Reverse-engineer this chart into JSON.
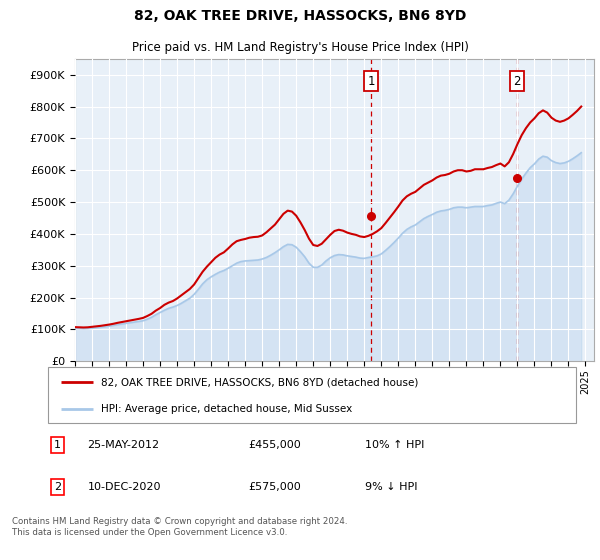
{
  "title": "82, OAK TREE DRIVE, HASSOCKS, BN6 8YD",
  "subtitle": "Price paid vs. HM Land Registry's House Price Index (HPI)",
  "ytick_values": [
    0,
    100000,
    200000,
    300000,
    400000,
    500000,
    600000,
    700000,
    800000,
    900000
  ],
  "ylim": [
    0,
    950000
  ],
  "x_start_year": 1995,
  "x_end_year": 2025,
  "transaction1": {
    "date_num": 2012.4,
    "price": 455000,
    "label": "1"
  },
  "transaction2": {
    "date_num": 2020.95,
    "price": 575000,
    "label": "2"
  },
  "hpi_color": "#a8c8e8",
  "price_color": "#cc0000",
  "vline_color": "#cc0000",
  "background_color": "#e8f0f8",
  "legend_label_price": "82, OAK TREE DRIVE, HASSOCKS, BN6 8YD (detached house)",
  "legend_label_hpi": "HPI: Average price, detached house, Mid Sussex",
  "footer": "Contains HM Land Registry data © Crown copyright and database right 2024.\nThis data is licensed under the Open Government Licence v3.0.",
  "hpi_data": [
    [
      1995.0,
      103000
    ],
    [
      1995.25,
      102500
    ],
    [
      1995.5,
      102000
    ],
    [
      1995.75,
      102500
    ],
    [
      1996.0,
      103500
    ],
    [
      1996.25,
      105000
    ],
    [
      1996.5,
      106500
    ],
    [
      1996.75,
      108000
    ],
    [
      1997.0,
      110000
    ],
    [
      1997.25,
      112500
    ],
    [
      1997.5,
      115000
    ],
    [
      1997.75,
      117000
    ],
    [
      1998.0,
      119000
    ],
    [
      1998.25,
      121000
    ],
    [
      1998.5,
      123000
    ],
    [
      1998.75,
      125000
    ],
    [
      1999.0,
      127000
    ],
    [
      1999.25,
      132000
    ],
    [
      1999.5,
      138000
    ],
    [
      1999.75,
      146000
    ],
    [
      2000.0,
      153000
    ],
    [
      2000.25,
      160000
    ],
    [
      2000.5,
      166000
    ],
    [
      2000.75,
      170000
    ],
    [
      2001.0,
      175000
    ],
    [
      2001.25,
      182000
    ],
    [
      2001.5,
      190000
    ],
    [
      2001.75,
      198000
    ],
    [
      2002.0,
      210000
    ],
    [
      2002.25,
      226000
    ],
    [
      2002.5,
      243000
    ],
    [
      2002.75,
      256000
    ],
    [
      2003.0,
      265000
    ],
    [
      2003.25,
      273000
    ],
    [
      2003.5,
      280000
    ],
    [
      2003.75,
      285000
    ],
    [
      2004.0,
      292000
    ],
    [
      2004.25,
      300000
    ],
    [
      2004.5,
      308000
    ],
    [
      2004.75,
      313000
    ],
    [
      2005.0,
      315000
    ],
    [
      2005.25,
      316000
    ],
    [
      2005.5,
      317000
    ],
    [
      2005.75,
      318000
    ],
    [
      2006.0,
      321000
    ],
    [
      2006.25,
      326000
    ],
    [
      2006.5,
      333000
    ],
    [
      2006.75,
      341000
    ],
    [
      2007.0,
      350000
    ],
    [
      2007.25,
      360000
    ],
    [
      2007.5,
      367000
    ],
    [
      2007.75,
      366000
    ],
    [
      2008.0,
      358000
    ],
    [
      2008.25,
      344000
    ],
    [
      2008.5,
      328000
    ],
    [
      2008.75,
      308000
    ],
    [
      2009.0,
      295000
    ],
    [
      2009.25,
      295000
    ],
    [
      2009.5,
      302000
    ],
    [
      2009.75,
      315000
    ],
    [
      2010.0,
      325000
    ],
    [
      2010.25,
      332000
    ],
    [
      2010.5,
      335000
    ],
    [
      2010.75,
      334000
    ],
    [
      2011.0,
      331000
    ],
    [
      2011.25,
      329000
    ],
    [
      2011.5,
      327000
    ],
    [
      2011.75,
      324000
    ],
    [
      2012.0,
      323000
    ],
    [
      2012.25,
      326000
    ],
    [
      2012.5,
      328000
    ],
    [
      2012.75,
      331000
    ],
    [
      2013.0,
      337000
    ],
    [
      2013.25,
      348000
    ],
    [
      2013.5,
      360000
    ],
    [
      2013.75,
      373000
    ],
    [
      2014.0,
      387000
    ],
    [
      2014.25,
      402000
    ],
    [
      2014.5,
      414000
    ],
    [
      2014.75,
      422000
    ],
    [
      2015.0,
      428000
    ],
    [
      2015.25,
      438000
    ],
    [
      2015.5,
      448000
    ],
    [
      2015.75,
      455000
    ],
    [
      2016.0,
      461000
    ],
    [
      2016.25,
      468000
    ],
    [
      2016.5,
      472000
    ],
    [
      2016.75,
      474000
    ],
    [
      2017.0,
      477000
    ],
    [
      2017.25,
      482000
    ],
    [
      2017.5,
      484000
    ],
    [
      2017.75,
      484000
    ],
    [
      2018.0,
      482000
    ],
    [
      2018.25,
      484000
    ],
    [
      2018.5,
      486000
    ],
    [
      2018.75,
      486000
    ],
    [
      2019.0,
      486000
    ],
    [
      2019.25,
      489000
    ],
    [
      2019.5,
      491000
    ],
    [
      2019.75,
      496000
    ],
    [
      2020.0,
      500000
    ],
    [
      2020.25,
      495000
    ],
    [
      2020.5,
      506000
    ],
    [
      2020.75,
      526000
    ],
    [
      2021.0,
      550000
    ],
    [
      2021.25,
      572000
    ],
    [
      2021.5,
      591000
    ],
    [
      2021.75,
      608000
    ],
    [
      2022.0,
      620000
    ],
    [
      2022.25,
      635000
    ],
    [
      2022.5,
      644000
    ],
    [
      2022.75,
      641000
    ],
    [
      2023.0,
      630000
    ],
    [
      2023.25,
      624000
    ],
    [
      2023.5,
      621000
    ],
    [
      2023.75,
      623000
    ],
    [
      2024.0,
      628000
    ],
    [
      2024.25,
      636000
    ],
    [
      2024.5,
      645000
    ],
    [
      2024.75,
      655000
    ]
  ],
  "price_data": [
    [
      1995.0,
      107000
    ],
    [
      1995.25,
      106500
    ],
    [
      1995.5,
      106000
    ],
    [
      1995.75,
      106500
    ],
    [
      1996.0,
      108000
    ],
    [
      1996.25,
      109500
    ],
    [
      1996.5,
      111000
    ],
    [
      1996.75,
      113000
    ],
    [
      1997.0,
      115000
    ],
    [
      1997.25,
      117500
    ],
    [
      1997.5,
      120500
    ],
    [
      1997.75,
      123000
    ],
    [
      1998.0,
      125500
    ],
    [
      1998.25,
      128000
    ],
    [
      1998.5,
      130500
    ],
    [
      1998.75,
      133000
    ],
    [
      1999.0,
      136000
    ],
    [
      1999.25,
      142000
    ],
    [
      1999.5,
      149000
    ],
    [
      1999.75,
      159000
    ],
    [
      2000.0,
      167000
    ],
    [
      2000.25,
      177000
    ],
    [
      2000.5,
      184000
    ],
    [
      2000.75,
      189000
    ],
    [
      2001.0,
      197000
    ],
    [
      2001.25,
      207000
    ],
    [
      2001.5,
      217000
    ],
    [
      2001.75,
      227000
    ],
    [
      2002.0,
      241000
    ],
    [
      2002.25,
      261000
    ],
    [
      2002.5,
      281000
    ],
    [
      2002.75,
      297000
    ],
    [
      2003.0,
      311000
    ],
    [
      2003.25,
      325000
    ],
    [
      2003.5,
      335000
    ],
    [
      2003.75,
      342000
    ],
    [
      2004.0,
      354000
    ],
    [
      2004.25,
      367000
    ],
    [
      2004.5,
      377000
    ],
    [
      2004.75,
      381000
    ],
    [
      2005.0,
      384000
    ],
    [
      2005.25,
      388000
    ],
    [
      2005.5,
      390000
    ],
    [
      2005.75,
      391000
    ],
    [
      2006.0,
      395000
    ],
    [
      2006.25,
      405000
    ],
    [
      2006.5,
      417000
    ],
    [
      2006.75,
      429000
    ],
    [
      2007.0,
      446000
    ],
    [
      2007.25,
      463000
    ],
    [
      2007.5,
      473000
    ],
    [
      2007.75,
      470000
    ],
    [
      2008.0,
      457000
    ],
    [
      2008.25,
      436000
    ],
    [
      2008.5,
      412000
    ],
    [
      2008.75,
      385000
    ],
    [
      2009.0,
      365000
    ],
    [
      2009.25,
      362000
    ],
    [
      2009.5,
      369000
    ],
    [
      2009.75,
      383000
    ],
    [
      2010.0,
      397000
    ],
    [
      2010.25,
      409000
    ],
    [
      2010.5,
      413000
    ],
    [
      2010.75,
      410000
    ],
    [
      2011.0,
      404000
    ],
    [
      2011.25,
      400000
    ],
    [
      2011.5,
      397000
    ],
    [
      2011.75,
      392000
    ],
    [
      2012.0,
      390000
    ],
    [
      2012.25,
      394000
    ],
    [
      2012.5,
      400000
    ],
    [
      2012.75,
      408000
    ],
    [
      2013.0,
      418000
    ],
    [
      2013.25,
      434000
    ],
    [
      2013.5,
      451000
    ],
    [
      2013.75,
      468000
    ],
    [
      2014.0,
      486000
    ],
    [
      2014.25,
      505000
    ],
    [
      2014.5,
      518000
    ],
    [
      2014.75,
      526000
    ],
    [
      2015.0,
      532000
    ],
    [
      2015.25,
      543000
    ],
    [
      2015.5,
      554000
    ],
    [
      2015.75,
      561000
    ],
    [
      2016.0,
      568000
    ],
    [
      2016.25,
      577000
    ],
    [
      2016.5,
      583000
    ],
    [
      2016.75,
      585000
    ],
    [
      2017.0,
      589000
    ],
    [
      2017.25,
      596000
    ],
    [
      2017.5,
      600000
    ],
    [
      2017.75,
      600000
    ],
    [
      2018.0,
      596000
    ],
    [
      2018.25,
      598000
    ],
    [
      2018.5,
      603000
    ],
    [
      2018.75,
      603000
    ],
    [
      2019.0,
      603000
    ],
    [
      2019.25,
      607000
    ],
    [
      2019.5,
      610000
    ],
    [
      2019.75,
      616000
    ],
    [
      2020.0,
      621000
    ],
    [
      2020.25,
      612000
    ],
    [
      2020.5,
      625000
    ],
    [
      2020.75,
      651000
    ],
    [
      2021.0,
      682000
    ],
    [
      2021.25,
      710000
    ],
    [
      2021.5,
      732000
    ],
    [
      2021.75,
      750000
    ],
    [
      2022.0,
      763000
    ],
    [
      2022.25,
      779000
    ],
    [
      2022.5,
      788000
    ],
    [
      2022.75,
      781000
    ],
    [
      2023.0,
      765000
    ],
    [
      2023.25,
      756000
    ],
    [
      2023.5,
      752000
    ],
    [
      2023.75,
      756000
    ],
    [
      2024.0,
      763000
    ],
    [
      2024.25,
      774000
    ],
    [
      2024.5,
      786000
    ],
    [
      2024.75,
      800000
    ]
  ]
}
